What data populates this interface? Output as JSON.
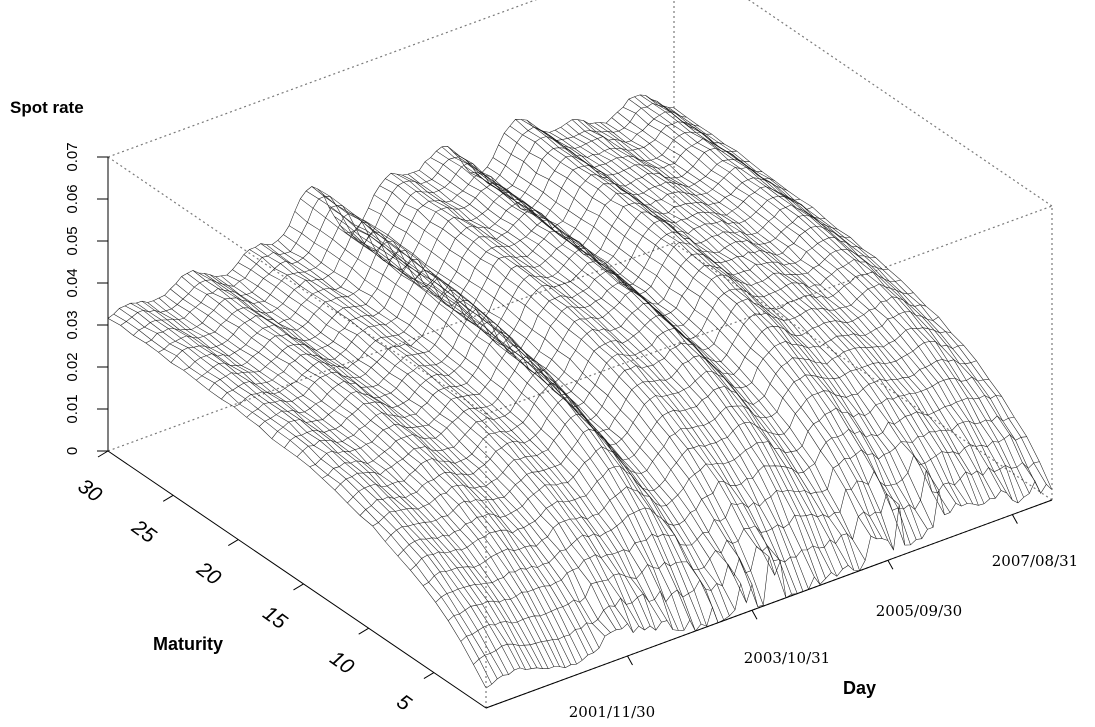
{
  "chart_data": {
    "type": "surface",
    "zlabel": "Spot rate",
    "xlabel": "Day",
    "ylabel": "Maturity",
    "z_ticks": [
      "0",
      "0.01",
      "0.02",
      "0.03",
      "0.04",
      "0.05",
      "0.06",
      "0.07"
    ],
    "zlim": [
      0,
      0.07
    ],
    "maturity_ticks": [
      "5",
      "10",
      "15",
      "20",
      "25",
      "30"
    ],
    "maturity_lim": [
      1,
      30
    ],
    "day_ticks": [
      "2001/11/30",
      "2003/10/31",
      "2005/09/30",
      "2007/08/31"
    ],
    "day_lim": [
      "2000/01/31",
      "2008/12/31"
    ],
    "grid": false
  }
}
